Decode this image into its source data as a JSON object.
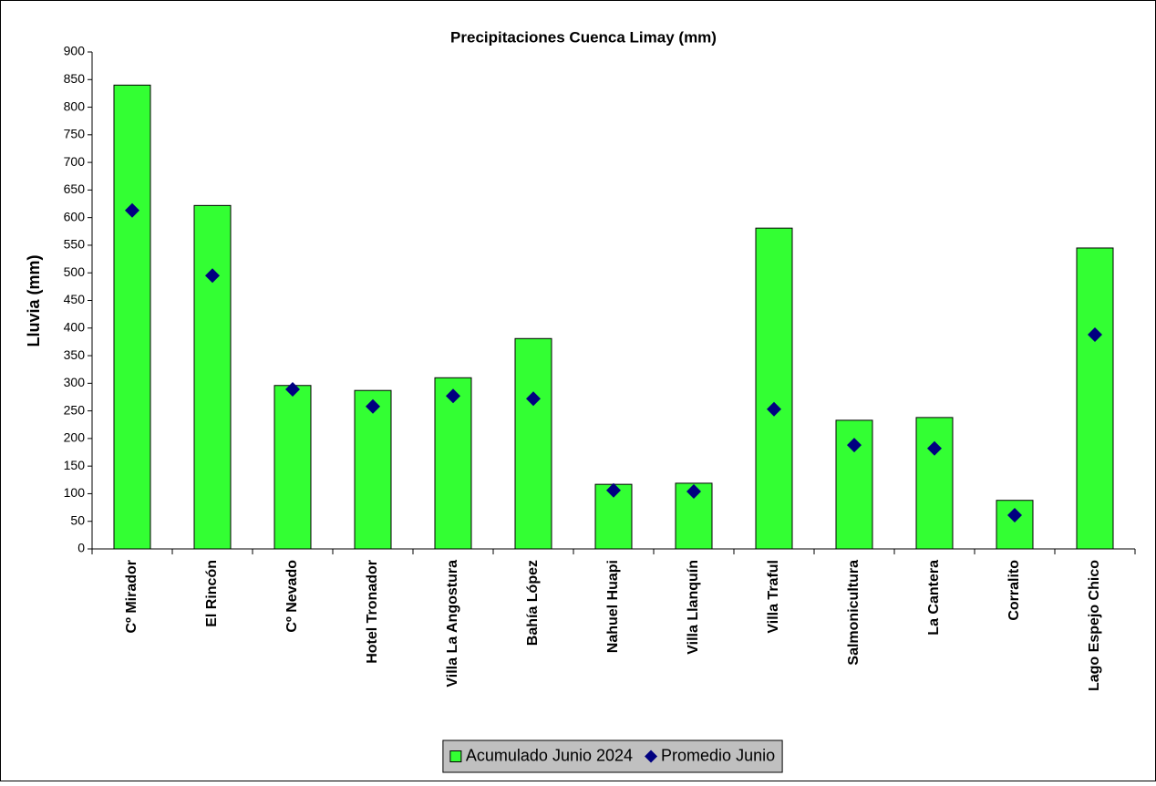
{
  "chart_data": {
    "type": "bar",
    "title": "Precipitaciones Cuenca Limay (mm)",
    "y_label": "Lluvia (mm)",
    "categories": [
      "Cº Mirador",
      "El Rincón",
      "Cº Nevado",
      "Hotel Tronador",
      "Villa La Angostura",
      "Bahía López",
      "Nahuel Huapi",
      "Villa Llanquín",
      "Villa Traful",
      "Salmonicultura",
      "La Cantera",
      "Corralito",
      "Lago Espejo Chico"
    ],
    "series": [
      {
        "name": "Acumulado Junio 2024",
        "color": "#33ff33",
        "marker": "bar",
        "values": [
          840,
          622,
          296,
          287,
          310,
          381,
          117,
          119,
          581,
          233,
          238,
          88,
          545
        ]
      },
      {
        "name": "Promedio Junio",
        "color": "#000080",
        "marker": "diamond",
        "values": [
          613,
          495,
          289,
          258,
          277,
          272,
          106,
          104,
          253,
          188,
          182,
          61,
          388
        ]
      }
    ],
    "ylim": [
      0,
      900
    ],
    "yticks": [
      0,
      50,
      100,
      150,
      200,
      250,
      300,
      350,
      400,
      450,
      500,
      550,
      600,
      650,
      700,
      750,
      800,
      850,
      900
    ],
    "grid": false,
    "legend": "bottom"
  }
}
